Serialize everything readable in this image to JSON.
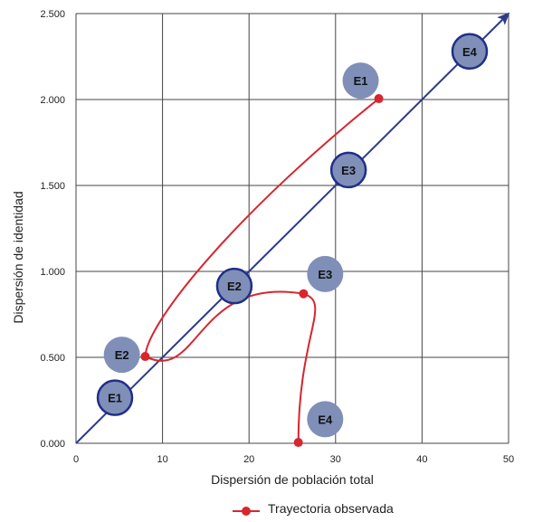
{
  "chart_data": {
    "type": "line",
    "xlabel": "Dispersión de población total",
    "ylabel": "Dispersión de identidad",
    "xlim": [
      0,
      50
    ],
    "ylim": [
      0,
      2500
    ],
    "x_ticks": [
      "0",
      "10",
      "20",
      "30",
      "40",
      "50"
    ],
    "y_ticks": [
      "0.000",
      "0.500",
      "1.000",
      "1.500",
      "2.000",
      "2.500"
    ],
    "grid": true,
    "legend_position": "bottom",
    "colors": {
      "reference_line": "#2b3a8c",
      "trajectory": "#d7262e",
      "node_fill": "#7f8fb8",
      "node_stroke_reference": "#1f2f88",
      "grid": "#444444"
    },
    "series": [
      {
        "name": "Trayectoria observada",
        "points": [
          {
            "x": 35.0,
            "y": 2005
          },
          {
            "x": 8.0,
            "y": 505
          },
          {
            "x": 26.3,
            "y": 870
          },
          {
            "x": 25.7,
            "y": 5
          }
        ]
      }
    ],
    "reference_line": {
      "from": {
        "x": 0,
        "y": 0
      },
      "to": {
        "x": 50,
        "y": 2500
      },
      "nodes": [
        {
          "label": "E1",
          "x": 4.5,
          "y": 265
        },
        {
          "label": "E2",
          "x": 18.3,
          "y": 915
        },
        {
          "label": "E3",
          "x": 31.5,
          "y": 1590
        },
        {
          "label": "E4",
          "x": 45.5,
          "y": 2280
        }
      ]
    },
    "observed_nodes": [
      {
        "label": "E1",
        "x": 32.9,
        "y": 2110
      },
      {
        "label": "E2",
        "x": 5.3,
        "y": 515
      },
      {
        "label": "E3",
        "x": 28.8,
        "y": 985
      },
      {
        "label": "E4",
        "x": 28.8,
        "y": 140
      }
    ]
  }
}
